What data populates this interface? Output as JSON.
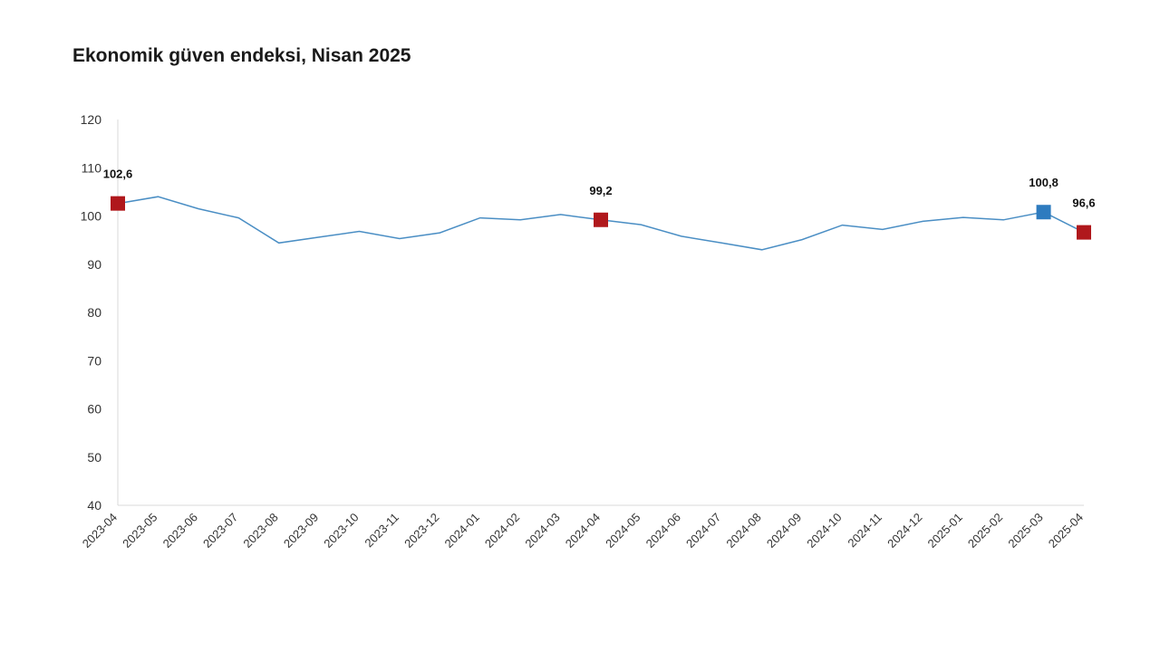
{
  "chart_data": {
    "type": "line",
    "title": "Ekonomik güven endeksi, Nisan 2025",
    "ylim": [
      40,
      120
    ],
    "yticks": [
      40,
      50,
      60,
      70,
      80,
      90,
      100,
      110,
      120
    ],
    "grid": false,
    "categories": [
      "2023-04",
      "2023-05",
      "2023-06",
      "2023-07",
      "2023-08",
      "2023-09",
      "2023-10",
      "2023-11",
      "2023-12",
      "2024-01",
      "2024-02",
      "2024-03",
      "2024-04",
      "2024-05",
      "2024-06",
      "2024-07",
      "2024-08",
      "2024-09",
      "2024-10",
      "2024-11",
      "2024-12",
      "2025-01",
      "2025-02",
      "2025-03",
      "2025-04"
    ],
    "series": [
      {
        "values": [
          102.6,
          104.0,
          101.5,
          99.6,
          94.4,
          95.6,
          96.8,
          95.3,
          96.5,
          99.6,
          99.2,
          100.3,
          99.2,
          98.2,
          95.8,
          94.4,
          93.0,
          95.1,
          98.1,
          97.2,
          98.9,
          99.7,
          99.2,
          100.8,
          96.6
        ],
        "color": "#4a8ec4"
      }
    ],
    "highlights": [
      {
        "category": "2023-04",
        "value": 102.6,
        "label": "102,6",
        "color": "#b0181c"
      },
      {
        "category": "2024-04",
        "value": 99.2,
        "label": "99,2",
        "color": "#b0181c"
      },
      {
        "category": "2025-03",
        "value": 100.8,
        "label": "100,8",
        "color": "#2e7bbf"
      },
      {
        "category": "2025-04",
        "value": 96.6,
        "label": "96,6",
        "color": "#b0181c"
      }
    ],
    "axis_color": "#d9d9d9"
  }
}
